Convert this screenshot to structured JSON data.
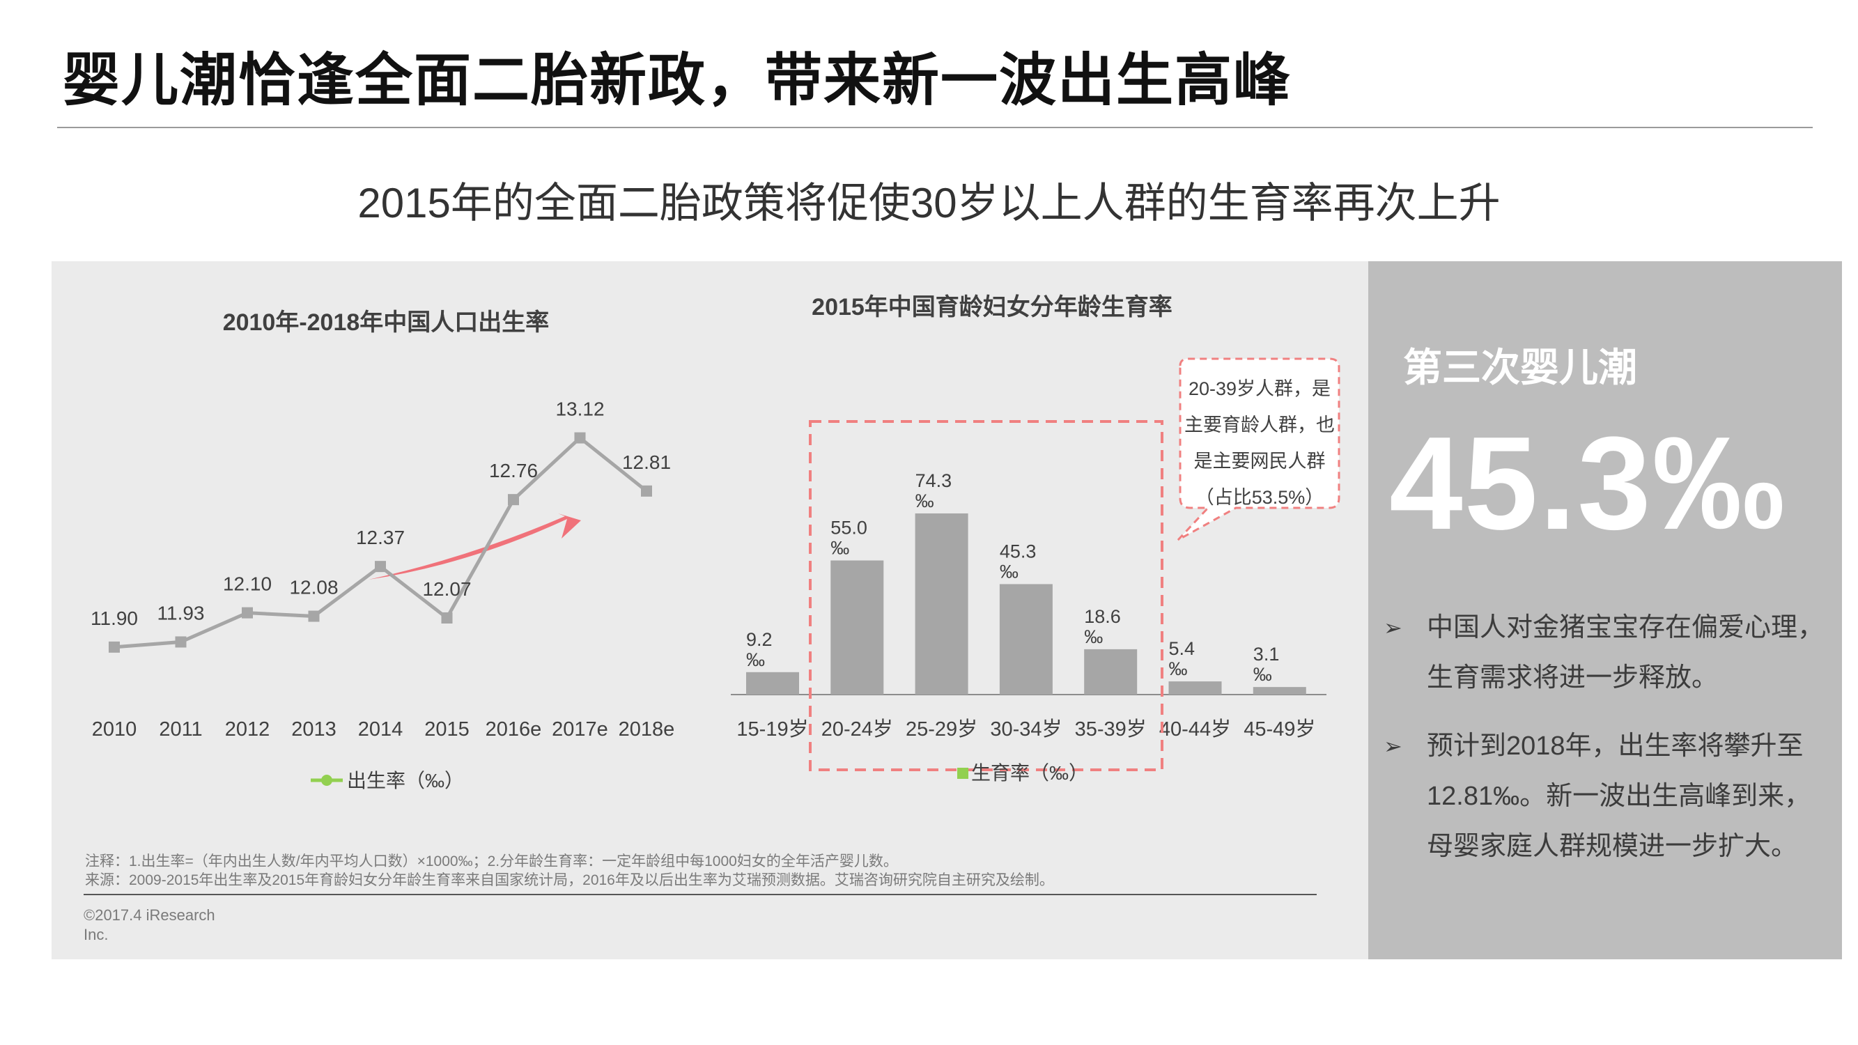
{
  "header": {
    "title": "婴儿潮恰逢全面二胎新政，带来新一波出生高峰",
    "subtitle": "2015年的全面二胎政策将促使30岁以上人群的生育率再次上升"
  },
  "chart_data": [
    {
      "type": "line",
      "title": "2010年-2018年中国人口出生率",
      "categories": [
        "2010",
        "2011",
        "2012",
        "2013",
        "2014",
        "2015",
        "2016e",
        "2017e",
        "2018e"
      ],
      "series": [
        {
          "name": "出生率（‰）",
          "values": [
            11.9,
            11.93,
            12.1,
            12.08,
            12.37,
            12.07,
            12.76,
            13.12,
            12.81
          ],
          "labels": [
            "11.90",
            "11.93",
            "12.10",
            "12.08",
            "12.37",
            "12.07",
            "12.76",
            "13.12",
            "12.81"
          ]
        }
      ],
      "ylim": [
        10.9,
        13.5
      ],
      "grid": false,
      "legend": "bottom",
      "colors": {
        "line": "#a6a6a6",
        "legend_marker": "#92d050",
        "arrow": "#f0727a"
      }
    },
    {
      "type": "bar",
      "title": "2015年中国育龄妇女分年龄生育率",
      "categories": [
        "15-19岁",
        "20-24岁",
        "25-29岁",
        "30-34岁",
        "35-39岁",
        "40-44岁",
        "45-49岁"
      ],
      "series": [
        {
          "name": "生育率（‰）",
          "values": [
            9.2,
            55.0,
            74.3,
            45.3,
            18.6,
            5.4,
            3.1
          ],
          "labels": [
            "9.2",
            "55.0",
            "74.3",
            "45.3",
            "18.6",
            "5.4",
            "3.1"
          ]
        }
      ],
      "value_unit": "‰",
      "ylim": [
        0,
        80
      ],
      "grid": false,
      "legend": "bottom",
      "colors": {
        "bar": "#a6a6a6",
        "legend_marker": "#92d050",
        "highlight": "#f08080"
      },
      "callout": [
        "20-39岁人群，是",
        "主要育龄人群，也",
        "是主要网民人群",
        "（占比53.5%）"
      ]
    }
  ],
  "notes": {
    "line1": "注释：1.出生率=（年内出生人数/年内平均人口数）×1000‰；2.分年龄生育率：一定年龄组中每1000妇女的全年活产婴儿数。",
    "line2": "来源：2009-2015年出生率及2015年育龄妇女分年龄生育率来自国家统计局，2016年及以后出生率为艾瑞预测数据。艾瑞咨询研究院自主研究及绘制。",
    "copyright": "©2017.4 iResearch Inc."
  },
  "side": {
    "heading": "第三次婴儿潮",
    "big_value": "45.3‰",
    "bullets": [
      "中国人对金猪宝宝存在偏爱心理，生育需求将进一步释放。",
      "预计到2018年，出生率将攀升至12.81‰。新一波出生高峰到来，母婴家庭人群规模进一步扩大。"
    ],
    "bullet_icon": "arrow-bullet-icon"
  }
}
